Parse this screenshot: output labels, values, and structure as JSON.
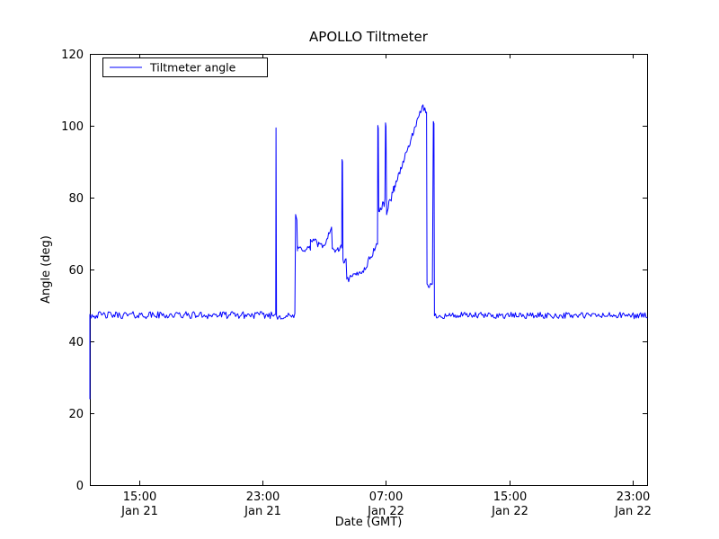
{
  "chart_data": {
    "type": "line",
    "title": "APOLLO Tiltmeter",
    "xlabel": "Date (GMT)",
    "ylabel": "Angle (deg)",
    "legend": [
      "Tiltmeter angle"
    ],
    "line_color": "#0000ff",
    "ylim": [
      0,
      120
    ],
    "yticks": [
      0,
      20,
      40,
      60,
      80,
      100,
      120
    ],
    "xlim_hours": [
      11.8,
      47.93
    ],
    "xticks": [
      {
        "h": 15,
        "time": "15:00",
        "date": "Jan 21"
      },
      {
        "h": 23,
        "time": "23:00",
        "date": "Jan 21"
      },
      {
        "h": 31,
        "time": "07:00",
        "date": "Jan 22"
      },
      {
        "h": 39,
        "time": "15:00",
        "date": "Jan 22"
      },
      {
        "h": 47,
        "time": "23:00",
        "date": "Jan 22"
      }
    ],
    "grid": false,
    "legend_position": "upper-left",
    "seed": 42,
    "segments": [
      {
        "type": "points",
        "pts": [
          [
            11.8,
            24.0
          ],
          [
            11.8,
            47.5
          ]
        ]
      },
      {
        "type": "noisy",
        "t0": 11.8,
        "t1": 23.83,
        "base": 47.3,
        "amp": 1.0,
        "dt": 0.07
      },
      {
        "type": "points",
        "pts": [
          [
            23.85,
            47.5
          ],
          [
            23.87,
            99.4
          ],
          [
            23.9,
            47.2
          ]
        ]
      },
      {
        "type": "noisy",
        "t0": 23.9,
        "t1": 25.12,
        "base": 47.0,
        "amp": 0.9,
        "dt": 0.07
      },
      {
        "type": "points",
        "pts": [
          [
            25.14,
            75.3
          ],
          [
            25.22,
            73.8
          ],
          [
            25.26,
            65.2
          ]
        ]
      },
      {
        "type": "noisy",
        "t0": 25.26,
        "t1": 26.1,
        "base": 65.8,
        "amp": 1.0,
        "dt": 0.06
      },
      {
        "type": "noisy",
        "t0": 26.1,
        "t1": 26.55,
        "base": 68.0,
        "amp": 1.0,
        "dt": 0.06
      },
      {
        "type": "points",
        "pts": [
          [
            26.58,
            66.3
          ],
          [
            26.64,
            67.6
          ]
        ]
      },
      {
        "type": "noisy",
        "t0": 26.64,
        "t1": 27.1,
        "base": 66.6,
        "amp": 0.8,
        "dt": 0.06
      },
      {
        "type": "ramp",
        "t0": 27.1,
        "t1": 27.45,
        "v0": 68.0,
        "v1": 71.5,
        "amp": 0.7,
        "dt": 0.06
      },
      {
        "type": "points",
        "pts": [
          [
            27.47,
            71.8
          ],
          [
            27.52,
            65.8
          ]
        ]
      },
      {
        "type": "noisy",
        "t0": 27.52,
        "t1": 27.92,
        "base": 65.4,
        "amp": 0.8,
        "dt": 0.06
      },
      {
        "type": "ramp",
        "t0": 27.92,
        "t1": 28.1,
        "v0": 65.5,
        "v1": 66.3,
        "amp": 0.6,
        "dt": 0.06
      },
      {
        "type": "points",
        "pts": [
          [
            28.13,
            66.0
          ],
          [
            28.15,
            90.6
          ],
          [
            28.18,
            90.0
          ],
          [
            28.21,
            63.0
          ]
        ]
      },
      {
        "type": "noisy",
        "t0": 28.21,
        "t1": 28.44,
        "base": 62.4,
        "amp": 0.8,
        "dt": 0.05
      },
      {
        "type": "points",
        "pts": [
          [
            28.46,
            57.3
          ]
        ]
      },
      {
        "type": "ramp",
        "t0": 28.46,
        "t1": 29.6,
        "v0": 57.0,
        "v1": 60.0,
        "amp": 0.9,
        "dt": 0.06
      },
      {
        "type": "ramp",
        "t0": 29.6,
        "t1": 30.35,
        "v0": 60.0,
        "v1": 66.5,
        "amp": 1.0,
        "dt": 0.06
      },
      {
        "type": "points",
        "pts": [
          [
            30.38,
            67.2
          ],
          [
            30.45,
            67.0
          ],
          [
            30.47,
            100.1
          ],
          [
            30.5,
            99.3
          ],
          [
            30.53,
            76.2
          ]
        ]
      },
      {
        "type": "ramp",
        "t0": 30.53,
        "t1": 30.95,
        "v0": 76.0,
        "v1": 79.0,
        "amp": 1.1,
        "dt": 0.05
      },
      {
        "type": "points",
        "pts": [
          [
            30.97,
            100.8
          ],
          [
            31.0,
            99.8
          ],
          [
            31.04,
            76.2
          ]
        ]
      },
      {
        "type": "ramp",
        "t0": 31.04,
        "t1": 31.55,
        "v0": 76.0,
        "v1": 83.0,
        "amp": 1.2,
        "dt": 0.05
      },
      {
        "type": "ramp",
        "t0": 31.55,
        "t1": 33.3,
        "v0": 83.0,
        "v1": 104.5,
        "amp": 0.8,
        "dt": 0.05
      },
      {
        "type": "points",
        "pts": [
          [
            33.34,
            105.4
          ],
          [
            33.4,
            105.8
          ],
          [
            33.46,
            104.2
          ],
          [
            33.52,
            105.0
          ],
          [
            33.58,
            103.6
          ],
          [
            33.63,
            103.8
          ]
        ]
      },
      {
        "type": "points",
        "pts": [
          [
            33.66,
            56.5
          ]
        ]
      },
      {
        "type": "noisy",
        "t0": 33.66,
        "t1": 34.05,
        "base": 55.6,
        "amp": 0.7,
        "dt": 0.05
      },
      {
        "type": "points",
        "pts": [
          [
            34.07,
            101.2
          ],
          [
            34.11,
            100.6
          ],
          [
            34.14,
            48.2
          ]
        ]
      },
      {
        "type": "noisy",
        "t0": 34.14,
        "t1": 47.93,
        "base": 47.2,
        "amp": 0.9,
        "dt": 0.07
      }
    ]
  }
}
